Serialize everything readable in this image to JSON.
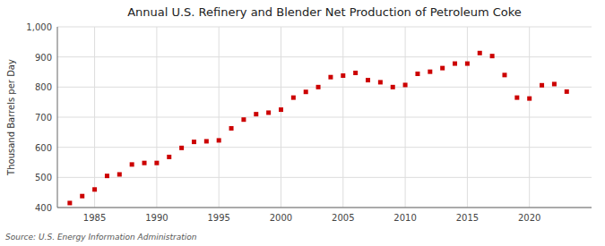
{
  "chart_data": {
    "type": "scatter",
    "title": "Annual U.S. Refinery and Blender Net Production of Petroleum Coke",
    "ylabel": "Thousand Barrels per Day",
    "source": "Source: U.S. Energy Information Administration",
    "color": "#cc0000",
    "marker": "square",
    "grid": true,
    "xlim": [
      1982,
      2025
    ],
    "ylim": [
      400,
      1000
    ],
    "xticks": [
      1985,
      1990,
      1995,
      2000,
      2005,
      2010,
      2015,
      2020
    ],
    "yticks": [
      400,
      500,
      600,
      700,
      800,
      900,
      {
        "value": 1000,
        "label": "1,000"
      }
    ],
    "x": [
      1983,
      1984,
      1985,
      1986,
      1987,
      1988,
      1989,
      1990,
      1991,
      1992,
      1993,
      1994,
      1995,
      1996,
      1997,
      1998,
      1999,
      2000,
      2001,
      2002,
      2003,
      2004,
      2005,
      2006,
      2007,
      2008,
      2009,
      2010,
      2011,
      2012,
      2013,
      2014,
      2015,
      2016,
      2017,
      2018,
      2019,
      2020,
      2021,
      2022,
      2023
    ],
    "values": [
      415,
      438,
      460,
      505,
      510,
      543,
      548,
      548,
      568,
      598,
      618,
      620,
      623,
      663,
      692,
      710,
      715,
      725,
      765,
      784,
      800,
      833,
      838,
      847,
      823,
      816,
      800,
      807,
      844,
      851,
      863,
      878,
      878,
      913,
      903,
      840,
      765,
      762,
      806,
      810,
      785
    ]
  }
}
